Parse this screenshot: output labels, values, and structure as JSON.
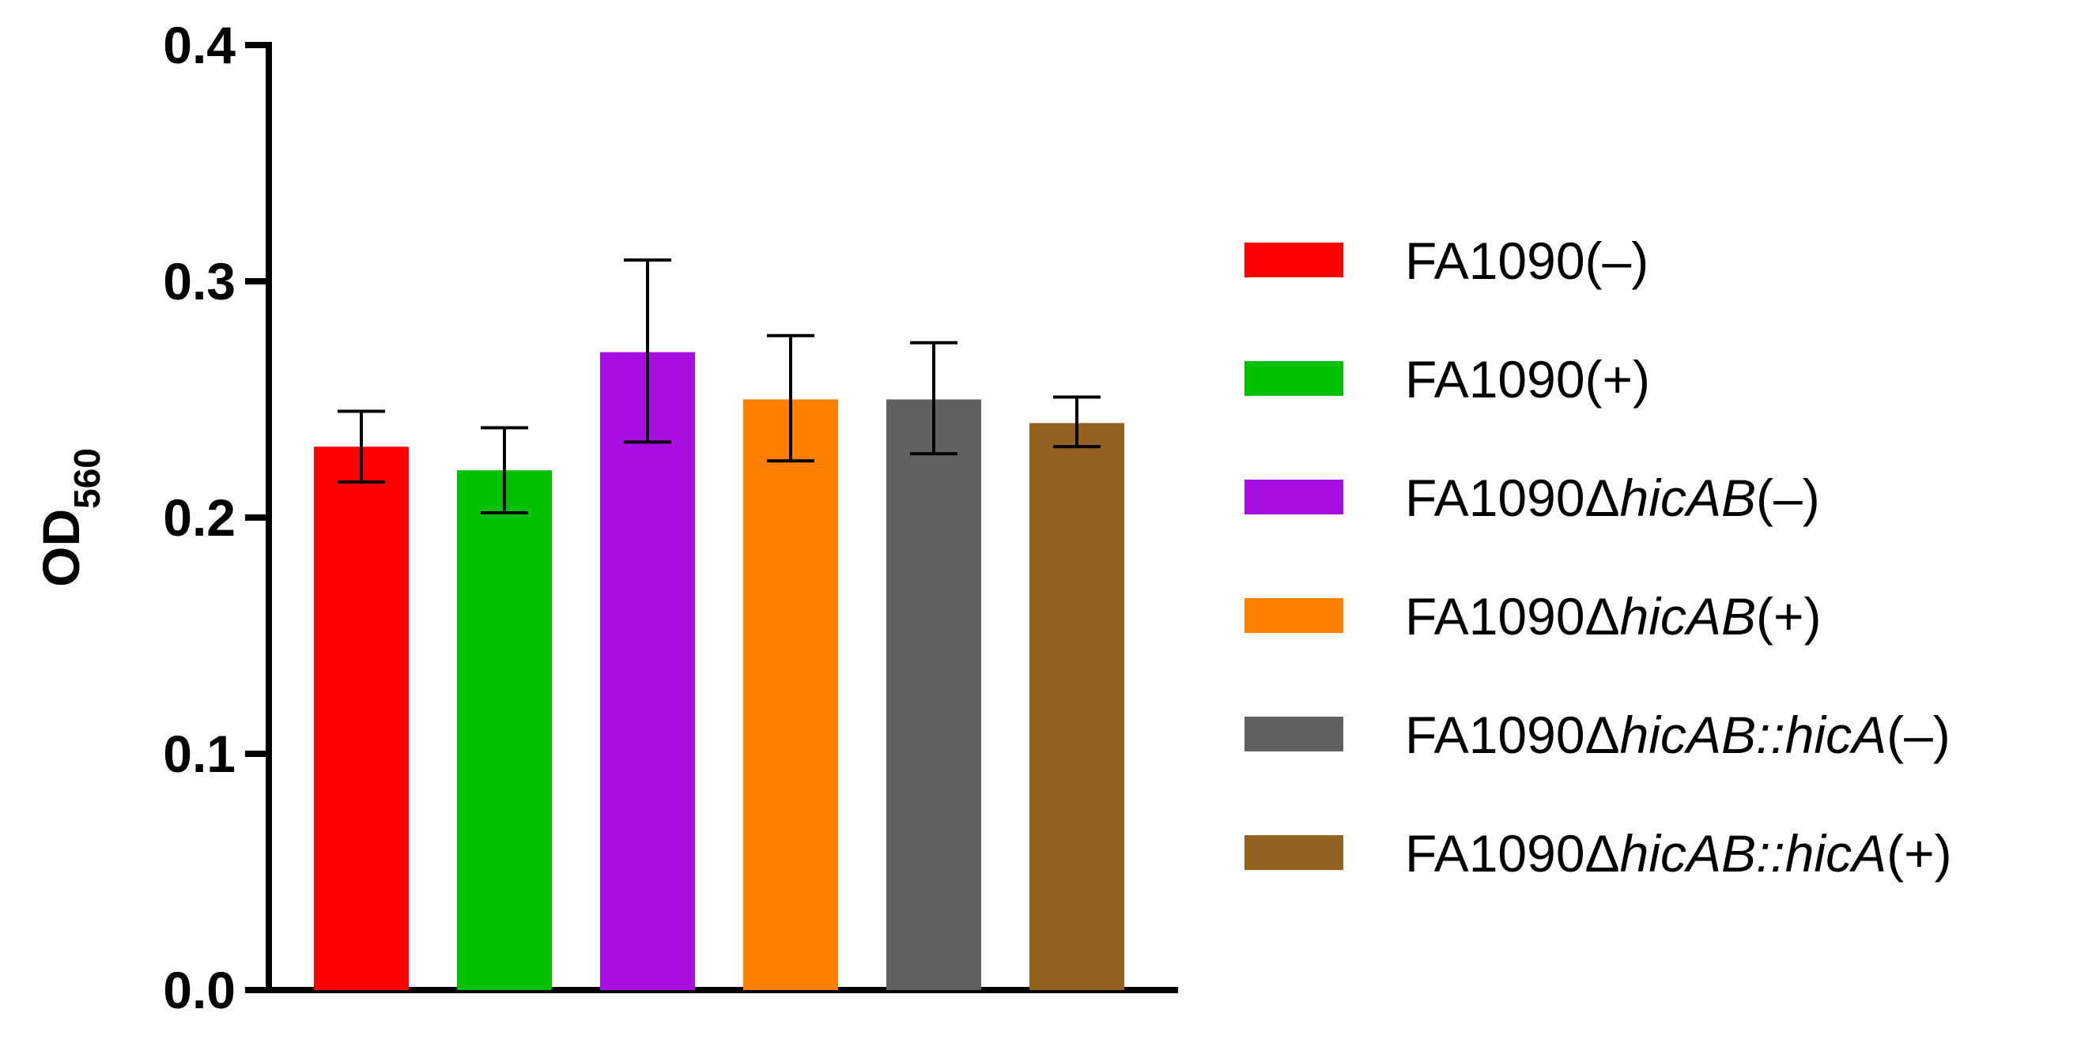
{
  "chart_data": {
    "type": "bar",
    "title": "",
    "xlabel": "",
    "ylabel": {
      "main": "OD",
      "subscript": "560"
    },
    "ylim": [
      0.0,
      0.4
    ],
    "yticks": [
      "0.0",
      "0.1",
      "0.2",
      "0.3",
      "0.4"
    ],
    "grid": false,
    "legend_position": "right",
    "categories": [
      "FA1090(–)",
      "FA1090(+)",
      "FA1090ΔhicAB(–)",
      "FA1090ΔhicAB(+)",
      "FA1090ΔhicAB::hicA(–)",
      "FA1090ΔhicAB::hicA(+)"
    ],
    "values": [
      0.23,
      0.22,
      0.27,
      0.25,
      0.25,
      0.24
    ],
    "error_low": [
      0.215,
      0.202,
      0.232,
      0.224,
      0.227,
      0.23
    ],
    "error_high": [
      0.245,
      0.238,
      0.309,
      0.277,
      0.274,
      0.251
    ],
    "colors": [
      "#fe0000",
      "#00c000",
      "#a90fe0",
      "#ff7f00",
      "#616161",
      "#936120"
    ],
    "legend": [
      {
        "parts": [
          {
            "t": "FA1090(–)",
            "i": false
          }
        ]
      },
      {
        "parts": [
          {
            "t": "FA1090(+)",
            "i": false
          }
        ]
      },
      {
        "parts": [
          {
            "t": "FA1090Δ",
            "i": false
          },
          {
            "t": "hicAB",
            "i": true
          },
          {
            "t": "(–)",
            "i": false
          }
        ]
      },
      {
        "parts": [
          {
            "t": "FA1090Δ",
            "i": false
          },
          {
            "t": "hicAB",
            "i": true
          },
          {
            "t": "(+)",
            "i": false
          }
        ]
      },
      {
        "parts": [
          {
            "t": "FA1090Δ",
            "i": false
          },
          {
            "t": "hicAB::hicA",
            "i": true
          },
          {
            "t": "(–)",
            "i": false
          }
        ]
      },
      {
        "parts": [
          {
            "t": "FA1090Δ",
            "i": false
          },
          {
            "t": "hicAB::hicA",
            "i": true
          },
          {
            "t": "(+)",
            "i": false
          }
        ]
      }
    ]
  }
}
